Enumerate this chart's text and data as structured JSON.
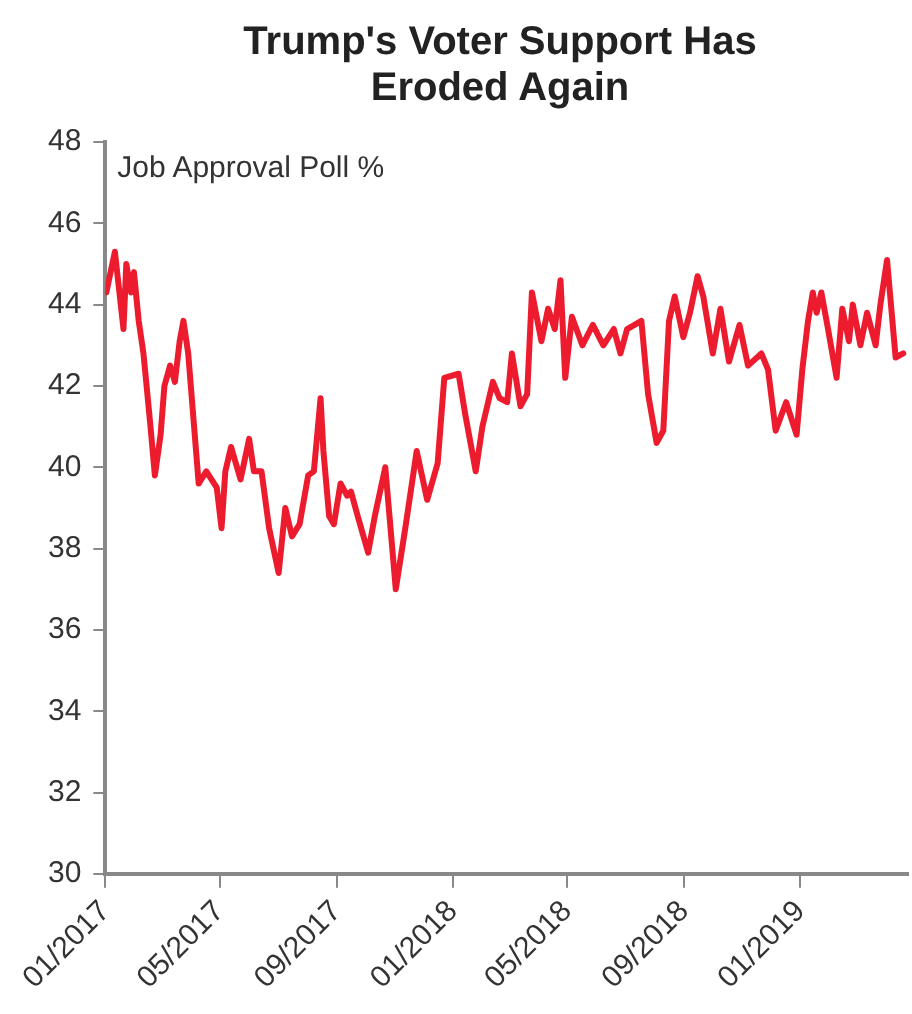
{
  "chart_data": {
    "type": "line",
    "title": "Trump's Voter Support Has Eroded Again",
    "annotations": [
      "Job Approval Poll %"
    ],
    "x": [
      "2017-01-02",
      "2017-01-11",
      "2017-01-20",
      "2017-01-23",
      "2017-01-28",
      "2017-01-31",
      "2017-02-05",
      "2017-02-10",
      "2017-02-17",
      "2017-02-22",
      "2017-02-28",
      "2017-03-04",
      "2017-03-10",
      "2017-03-15",
      "2017-03-20",
      "2017-03-24",
      "2017-03-29",
      "2017-04-09",
      "2017-04-17",
      "2017-04-28",
      "2017-05-03",
      "2017-05-07",
      "2017-05-13",
      "2017-05-23",
      "2017-06-01",
      "2017-06-06",
      "2017-06-14",
      "2017-06-22",
      "2017-07-02",
      "2017-07-09",
      "2017-07-16",
      "2017-07-24",
      "2017-08-02",
      "2017-08-08",
      "2017-08-15",
      "2017-08-18",
      "2017-08-24",
      "2017-08-29",
      "2017-09-05",
      "2017-09-12",
      "2017-09-16",
      "2017-09-23",
      "2017-10-04",
      "2017-10-11",
      "2017-10-22",
      "2017-11-02",
      "2017-11-12",
      "2017-11-24",
      "2017-12-05",
      "2017-12-16",
      "2017-12-23",
      "2018-01-07",
      "2018-01-14",
      "2018-01-25",
      "2018-02-01",
      "2018-02-12",
      "2018-02-19",
      "2018-02-27",
      "2018-03-04",
      "2018-03-13",
      "2018-03-20",
      "2018-03-25",
      "2018-04-04",
      "2018-04-11",
      "2018-04-18",
      "2018-04-24",
      "2018-04-29",
      "2018-05-06",
      "2018-05-17",
      "2018-05-28",
      "2018-06-08",
      "2018-06-19",
      "2018-06-26",
      "2018-07-03",
      "2018-07-18",
      "2018-07-25",
      "2018-08-03",
      "2018-08-10",
      "2018-08-16",
      "2018-08-22",
      "2018-08-31",
      "2018-09-07",
      "2018-09-15",
      "2018-09-21",
      "2018-10-01",
      "2018-10-09",
      "2018-10-18",
      "2018-10-29",
      "2018-11-07",
      "2018-11-21",
      "2018-11-28",
      "2018-12-06",
      "2018-12-17",
      "2018-12-28",
      "2019-01-03",
      "2019-01-09",
      "2019-01-14",
      "2019-01-18",
      "2019-01-23",
      "2019-01-30",
      "2019-02-08",
      "2019-02-14",
      "2019-02-21",
      "2019-02-25",
      "2019-03-05",
      "2019-03-12",
      "2019-03-21",
      "2019-03-26",
      "2019-04-02",
      "2019-04-11",
      "2019-04-19"
    ],
    "series": [
      {
        "color": "#ec1c2e",
        "values": [
          44.3,
          45.3,
          43.4,
          45.0,
          44.3,
          44.8,
          43.6,
          42.8,
          41.1,
          39.8,
          40.8,
          42.0,
          42.5,
          42.1,
          43.1,
          43.6,
          42.8,
          39.6,
          39.9,
          39.5,
          38.5,
          39.9,
          40.5,
          39.7,
          40.7,
          39.9,
          39.9,
          38.5,
          37.4,
          39.0,
          38.3,
          38.6,
          39.8,
          39.9,
          41.7,
          40.4,
          38.8,
          38.6,
          39.6,
          39.3,
          39.4,
          38.8,
          37.9,
          38.8,
          40.0,
          37.0,
          38.5,
          40.4,
          39.2,
          40.1,
          42.2,
          42.3,
          41.3,
          39.9,
          41.0,
          42.1,
          41.7,
          41.6,
          42.8,
          41.5,
          41.8,
          44.3,
          43.1,
          43.9,
          43.4,
          44.6,
          42.2,
          43.7,
          43.0,
          43.5,
          43.0,
          43.4,
          42.8,
          43.4,
          43.6,
          41.8,
          40.6,
          40.9,
          43.6,
          44.2,
          43.2,
          43.8,
          44.7,
          44.2,
          42.8,
          43.9,
          42.6,
          43.5,
          42.5,
          42.8,
          42.4,
          40.9,
          41.6,
          40.8,
          42.4,
          43.6,
          44.3,
          43.8,
          44.3,
          43.4,
          42.2,
          43.9,
          43.1,
          44.0,
          43.0,
          43.8,
          43.0,
          44.0,
          45.1,
          42.7,
          42.8
        ]
      }
    ],
    "xlim": [
      "2017-01-01",
      "2019-04-24"
    ],
    "xticks": [
      {
        "value": "2017-01-01",
        "label": "01/2017"
      },
      {
        "value": "2017-05-01",
        "label": "05/2017"
      },
      {
        "value": "2017-09-01",
        "label": "09/2017"
      },
      {
        "value": "2018-01-01",
        "label": "01/2018"
      },
      {
        "value": "2018-05-01",
        "label": "05/2018"
      },
      {
        "value": "2018-09-01",
        "label": "09/2018"
      },
      {
        "value": "2019-01-01",
        "label": "01/2019"
      }
    ],
    "ylim": [
      30,
      48
    ],
    "yticks": [
      30,
      32,
      34,
      36,
      38,
      40,
      42,
      44,
      46,
      48
    ],
    "grid": false,
    "legend": false,
    "marker": "none",
    "line_style": "solid"
  }
}
